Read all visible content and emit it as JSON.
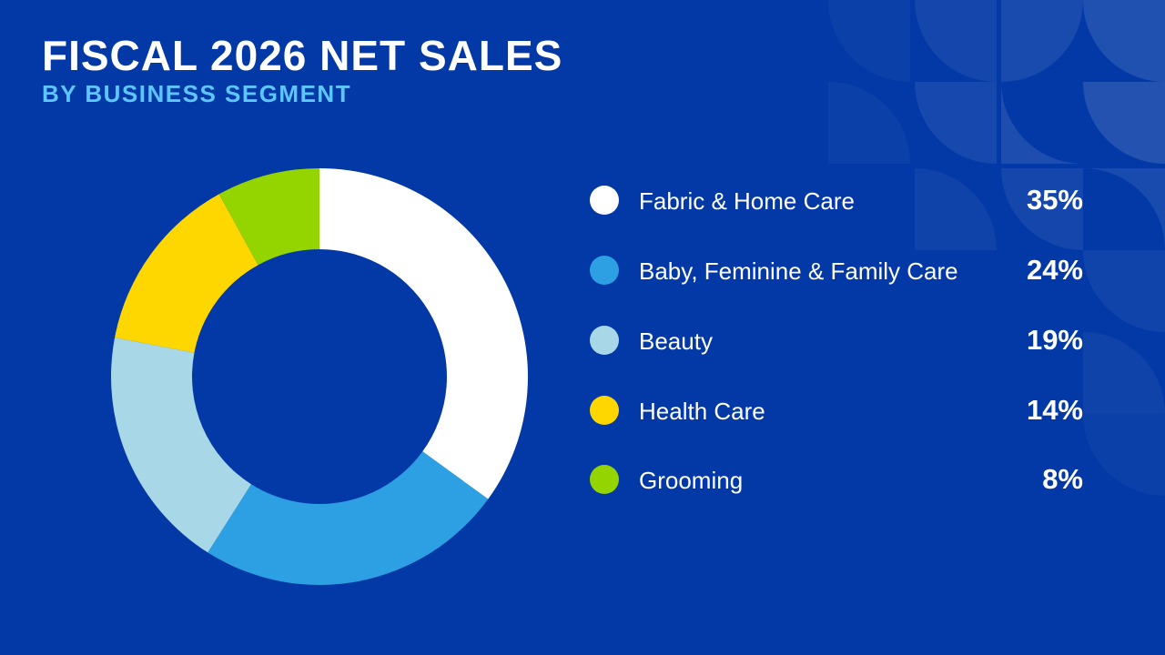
{
  "title": "FISCAL 2026 NET SALES",
  "subtitle": "BY BUSINESS SEGMENT",
  "colors": {
    "background": "#0339a6",
    "subtitle": "#5ec6ff"
  },
  "chart_data": {
    "type": "pie",
    "variant": "donut",
    "title": "FISCAL 2026 NET SALES",
    "subtitle": "BY BUSINESS SEGMENT",
    "legend_position": "right",
    "start_angle": "top, clockwise",
    "categories": [
      "Fabric & Home Care",
      "Baby, Feminine & Family Care",
      "Beauty",
      "Health Care",
      "Grooming"
    ],
    "values": [
      35,
      24,
      19,
      14,
      8
    ],
    "labels": [
      "35%",
      "24%",
      "19%",
      "14%",
      "8%"
    ],
    "colors": [
      "#ffffff",
      "#2d9fe3",
      "#a8d8e8",
      "#ffd700",
      "#94d500"
    ]
  }
}
